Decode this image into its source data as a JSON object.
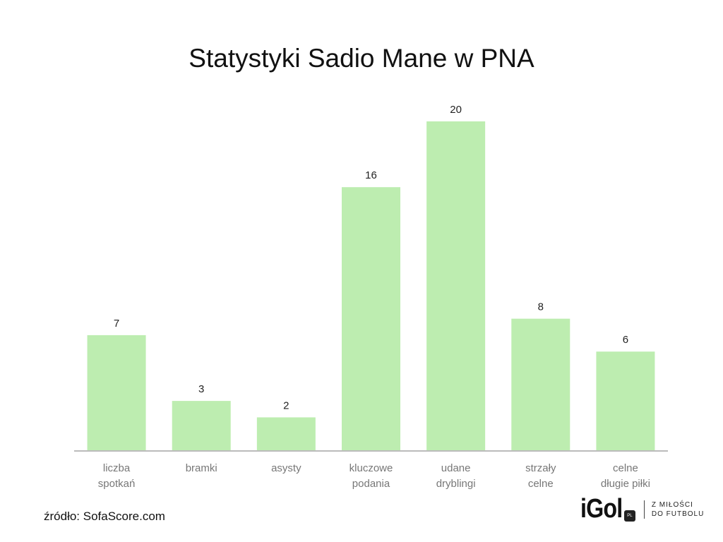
{
  "chart_data": {
    "type": "bar",
    "title": "Statystyki Sadio Mane w PNA",
    "categories": [
      [
        "liczba",
        "spotkań"
      ],
      [
        "bramki"
      ],
      [
        "asysty"
      ],
      [
        "kluczowe",
        "podania"
      ],
      [
        "udane",
        "dryblingi"
      ],
      [
        "strzały",
        "celne"
      ],
      [
        "celne",
        "długie piłki"
      ]
    ],
    "values": [
      7,
      3,
      2,
      16,
      20,
      8,
      6
    ],
    "xlabel": "",
    "ylabel": "",
    "ylim": [
      0,
      20
    ],
    "grid": false,
    "bar_color": "#bdedb0",
    "axis_color": "#bbbbbb"
  },
  "source": "źródło: SofaScore.com",
  "logo": {
    "word": "iGol",
    "badge": "PL",
    "tagline": [
      "Z MIŁOŚCI",
      "DO FUTBOLU"
    ]
  }
}
